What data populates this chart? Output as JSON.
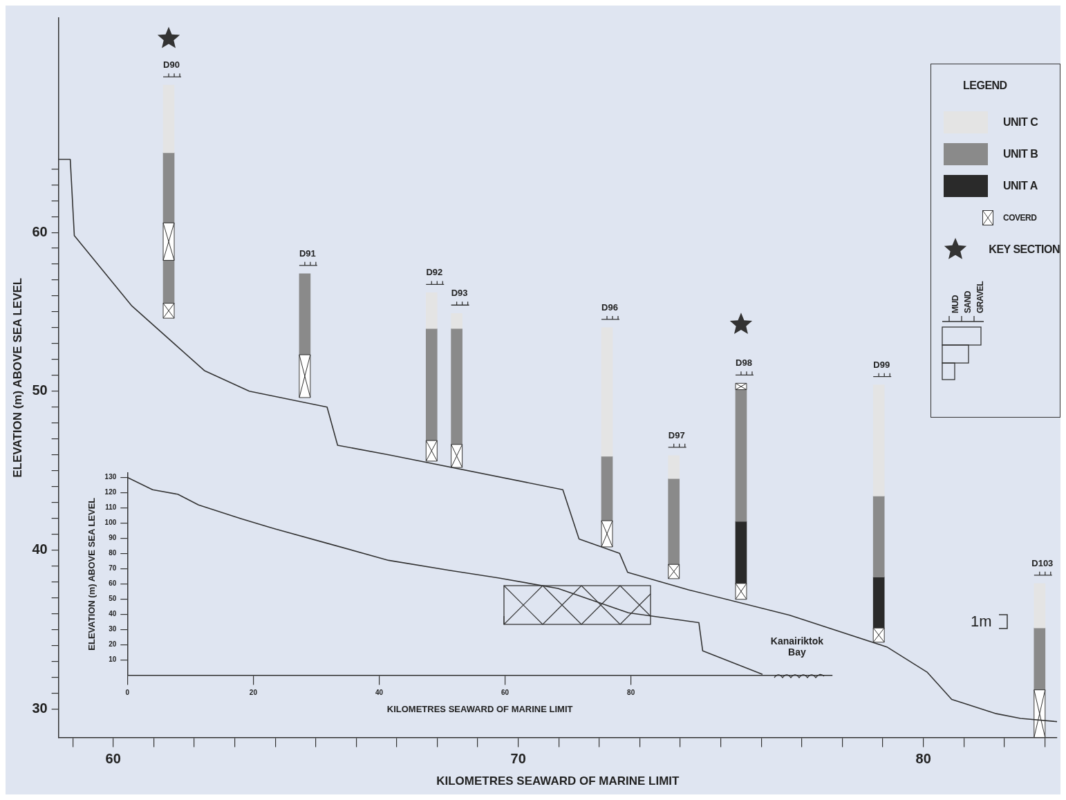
{
  "chart_data": [
    {
      "type": "bar",
      "xlabel": "KILOMETRES SEAWARD OF MARINE LIMIT",
      "ylabel": "ELEVATION (m) ABOVE SEA LEVEL",
      "legend_title": "LEGEND",
      "legend": "top right",
      "grid": false,
      "xlim": [
        58.65,
        83.3
      ],
      "ylim": [
        28.2,
        73.5
      ],
      "xticks": [
        {
          "value": 59,
          "label": null
        },
        60,
        {
          "value": 61,
          "label": null
        },
        {
          "value": 62,
          "label": null
        },
        {
          "value": 63,
          "label": null
        },
        {
          "value": 64,
          "label": null
        },
        {
          "value": 65,
          "label": null
        },
        {
          "value": 66,
          "label": null
        },
        {
          "value": 67,
          "label": null
        },
        {
          "value": 68,
          "label": null
        },
        {
          "value": 69,
          "label": null
        },
        70,
        {
          "value": 71,
          "label": null
        },
        {
          "value": 72,
          "label": null
        },
        {
          "value": 73,
          "label": null
        },
        {
          "value": 74,
          "label": null
        },
        {
          "value": 75,
          "label": null
        },
        {
          "value": 76,
          "label": null
        },
        {
          "value": 77,
          "label": null
        },
        {
          "value": 78,
          "label": null
        },
        {
          "value": 79,
          "label": null
        },
        80,
        {
          "value": 81,
          "label": null
        },
        {
          "value": 82,
          "label": null
        },
        {
          "value": 83,
          "label": null
        }
      ],
      "yticks": [
        30,
        {
          "value": 31,
          "label": null
        },
        {
          "value": 32,
          "label": null
        },
        {
          "value": 33,
          "label": null
        },
        {
          "value": 34,
          "label": null
        },
        {
          "value": 35,
          "label": null
        },
        {
          "value": 36,
          "label": null
        },
        {
          "value": 37,
          "label": null
        },
        {
          "value": 38,
          "label": null
        },
        {
          "value": 39,
          "label": null
        },
        40,
        {
          "value": 41,
          "label": null
        },
        {
          "value": 42,
          "label": null
        },
        {
          "value": 43,
          "label": null
        },
        {
          "value": 44,
          "label": null
        },
        {
          "value": 45,
          "label": null
        },
        {
          "value": 46,
          "label": null
        },
        {
          "value": 47,
          "label": null
        },
        {
          "value": 48,
          "label": null
        },
        {
          "value": 49,
          "label": null
        },
        50,
        {
          "value": 51,
          "label": null
        },
        {
          "value": 52,
          "label": null
        },
        {
          "value": 53,
          "label": null
        },
        {
          "value": 54,
          "label": null
        },
        {
          "value": 55,
          "label": null
        },
        {
          "value": 56,
          "label": null
        },
        {
          "value": 57,
          "label": null
        },
        {
          "value": 58,
          "label": null
        },
        {
          "value": 59,
          "label": null
        },
        60,
        {
          "value": 61,
          "label": null
        },
        {
          "value": 62,
          "label": null
        },
        {
          "value": 63,
          "label": null
        },
        {
          "value": 64,
          "label": null
        }
      ],
      "series": [
        {
          "type": "line",
          "color": "#333333",
          "x": [
            58.65,
            58.94,
            59.04,
            60.45,
            62.25,
            63.36,
            65.28,
            65.54,
            66.8,
            71.1,
            71.5,
            72.5,
            72.7,
            74.2,
            76.7,
            79.1,
            80.1,
            80.7,
            81.8,
            82.4,
            83.3
          ],
          "values": [
            64.6,
            64.6,
            59.8,
            55.4,
            51.3,
            50.0,
            49.0,
            46.6,
            46.0,
            43.8,
            40.7,
            39.8,
            38.6,
            37.5,
            35.9,
            33.9,
            32.3,
            30.6,
            29.7,
            29.4,
            29.2
          ]
        },
        {
          "name": "UNIT C",
          "color": "#e4e4e4",
          "x": [
            61.37,
            67.86,
            68.48,
            72.19,
            73.84,
            78.9,
            82.87
          ],
          "base": [
            65.02,
            53.95,
            53.95,
            45.9,
            44.5,
            43.4,
            35.1
          ],
          "values": [
            4.25,
            2.25,
            0.95,
            8.1,
            1.45,
            7.0,
            2.8
          ]
        },
        {
          "name": "UNIT B",
          "color": "#8a8a8a",
          "x": [
            61.37,
            64.73,
            67.86,
            68.48,
            72.19,
            73.84,
            75.5,
            78.9,
            82.87
          ],
          "base": [
            60.6,
            52.3,
            46.9,
            46.65,
            41.85,
            39.1,
            41.8,
            38.3,
            31.2
          ],
          "values": [
            4.42,
            5.1,
            7.05,
            7.3,
            4.05,
            5.4,
            8.3,
            5.1,
            3.9
          ]
        },
        {
          "color": "#8a8a8a",
          "x": [
            61.37
          ],
          "base": [
            55.54
          ],
          "values": [
            2.7
          ]
        },
        {
          "name": "UNIT A",
          "color": "#2a2a2a",
          "x": [
            75.5,
            78.9
          ],
          "base": [
            37.9,
            35.1
          ],
          "values": [
            3.9,
            3.2
          ]
        },
        {
          "name": "COVERD",
          "color": "#ffffff",
          "x": [
            61.37,
            64.73,
            67.86,
            68.48,
            72.19,
            73.84,
            75.5,
            78.9,
            82.87
          ],
          "base": [
            58.24,
            49.6,
            45.6,
            45.2,
            40.2,
            38.2,
            50.1,
            34.2,
            28.2
          ],
          "values": [
            2.36,
            2.7,
            1.3,
            1.45,
            1.65,
            0.9,
            0.4,
            0.9,
            3.0
          ]
        },
        {
          "color": "#ffffff",
          "x": [
            61.37,
            75.5
          ],
          "base": [
            54.6,
            36.9
          ],
          "values": [
            0.94,
            1.0
          ]
        },
        {
          "type": "scatter",
          "name": "KEY SECTION",
          "marker": "star",
          "color": "#333333",
          "x": [
            61.37,
            75.5
          ],
          "values": [
            72.2,
            54.2
          ]
        }
      ],
      "annotations": [
        "D90",
        "D91",
        "D92",
        "D93",
        "D96",
        "D97",
        "D98",
        "D99",
        "D103",
        "MUD",
        "SAND",
        "GRAVEL",
        "1m"
      ]
    },
    {
      "type": "line",
      "xlabel": "KILOMETRES SEAWARD OF MARINE LIMIT",
      "ylabel": "ELEVATION (m) ABOVE SEA LEVEL",
      "grid": false,
      "xlim": [
        0,
        112
      ],
      "ylim": [
        0,
        133
      ],
      "xticks": [
        0,
        20,
        40,
        60,
        80
      ],
      "yticks": [
        10,
        20,
        30,
        40,
        50,
        60,
        70,
        80,
        90,
        100,
        110,
        120,
        130
      ],
      "series": [
        {
          "color": "#333333",
          "x": [
            0,
            4,
            8,
            11.3,
            18,
            23.6,
            31.5,
            41.5,
            51.6,
            58.9,
            68.4,
            79.6,
            90.8,
            91.4,
            100.9
          ],
          "values": [
            130,
            122,
            119,
            112,
            103,
            96,
            87,
            75.5,
            68.6,
            64,
            57,
            41,
            34.5,
            16,
            0.5
          ]
        }
      ],
      "annotations": [
        "Kanairiktok Bay"
      ]
    }
  ]
}
